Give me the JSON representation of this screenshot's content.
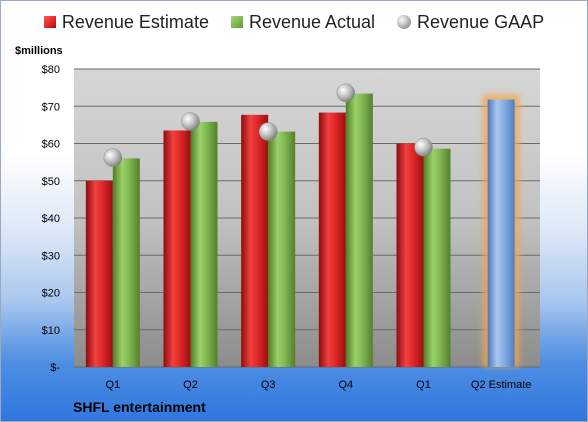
{
  "chart_data": {
    "type": "bar",
    "title": "",
    "ylabel": "$millions",
    "xlabel": "",
    "ylim": [
      0,
      80
    ],
    "y_ticks": [
      {
        "value": 0,
        "label": "$-"
      },
      {
        "value": 10,
        "label": "$10"
      },
      {
        "value": 20,
        "label": "$20"
      },
      {
        "value": 30,
        "label": "$30"
      },
      {
        "value": 40,
        "label": "$40"
      },
      {
        "value": 50,
        "label": "$50"
      },
      {
        "value": 60,
        "label": "$60"
      },
      {
        "value": 70,
        "label": "$70"
      },
      {
        "value": 80,
        "label": "$80"
      }
    ],
    "categories": [
      "Q1",
      "Q2",
      "Q3",
      "Q4",
      "Q1",
      "Q2 Estimate"
    ],
    "series": [
      {
        "name": "Revenue Estimate",
        "values": [
          50.0,
          63.5,
          67.7,
          68.3,
          60.0,
          null
        ]
      },
      {
        "name": "Revenue Actual",
        "values": [
          56.0,
          65.8,
          63.2,
          73.4,
          58.6,
          null
        ]
      },
      {
        "name": "Revenue GAAP",
        "values": [
          56.2,
          65.9,
          63.2,
          73.6,
          59.0,
          null
        ]
      }
    ],
    "forecast": {
      "category": "Q2 Estimate",
      "value": 71.8
    },
    "legend_position": "top",
    "grid": true
  },
  "colors": {
    "estimate": "#d42020",
    "actual": "#76ad45",
    "gaap": "#b0b0b0",
    "forecast": "#6f9fd8",
    "forecast_glow": "#f5a64a"
  },
  "footer": {
    "company": "SHFL entertainment"
  }
}
